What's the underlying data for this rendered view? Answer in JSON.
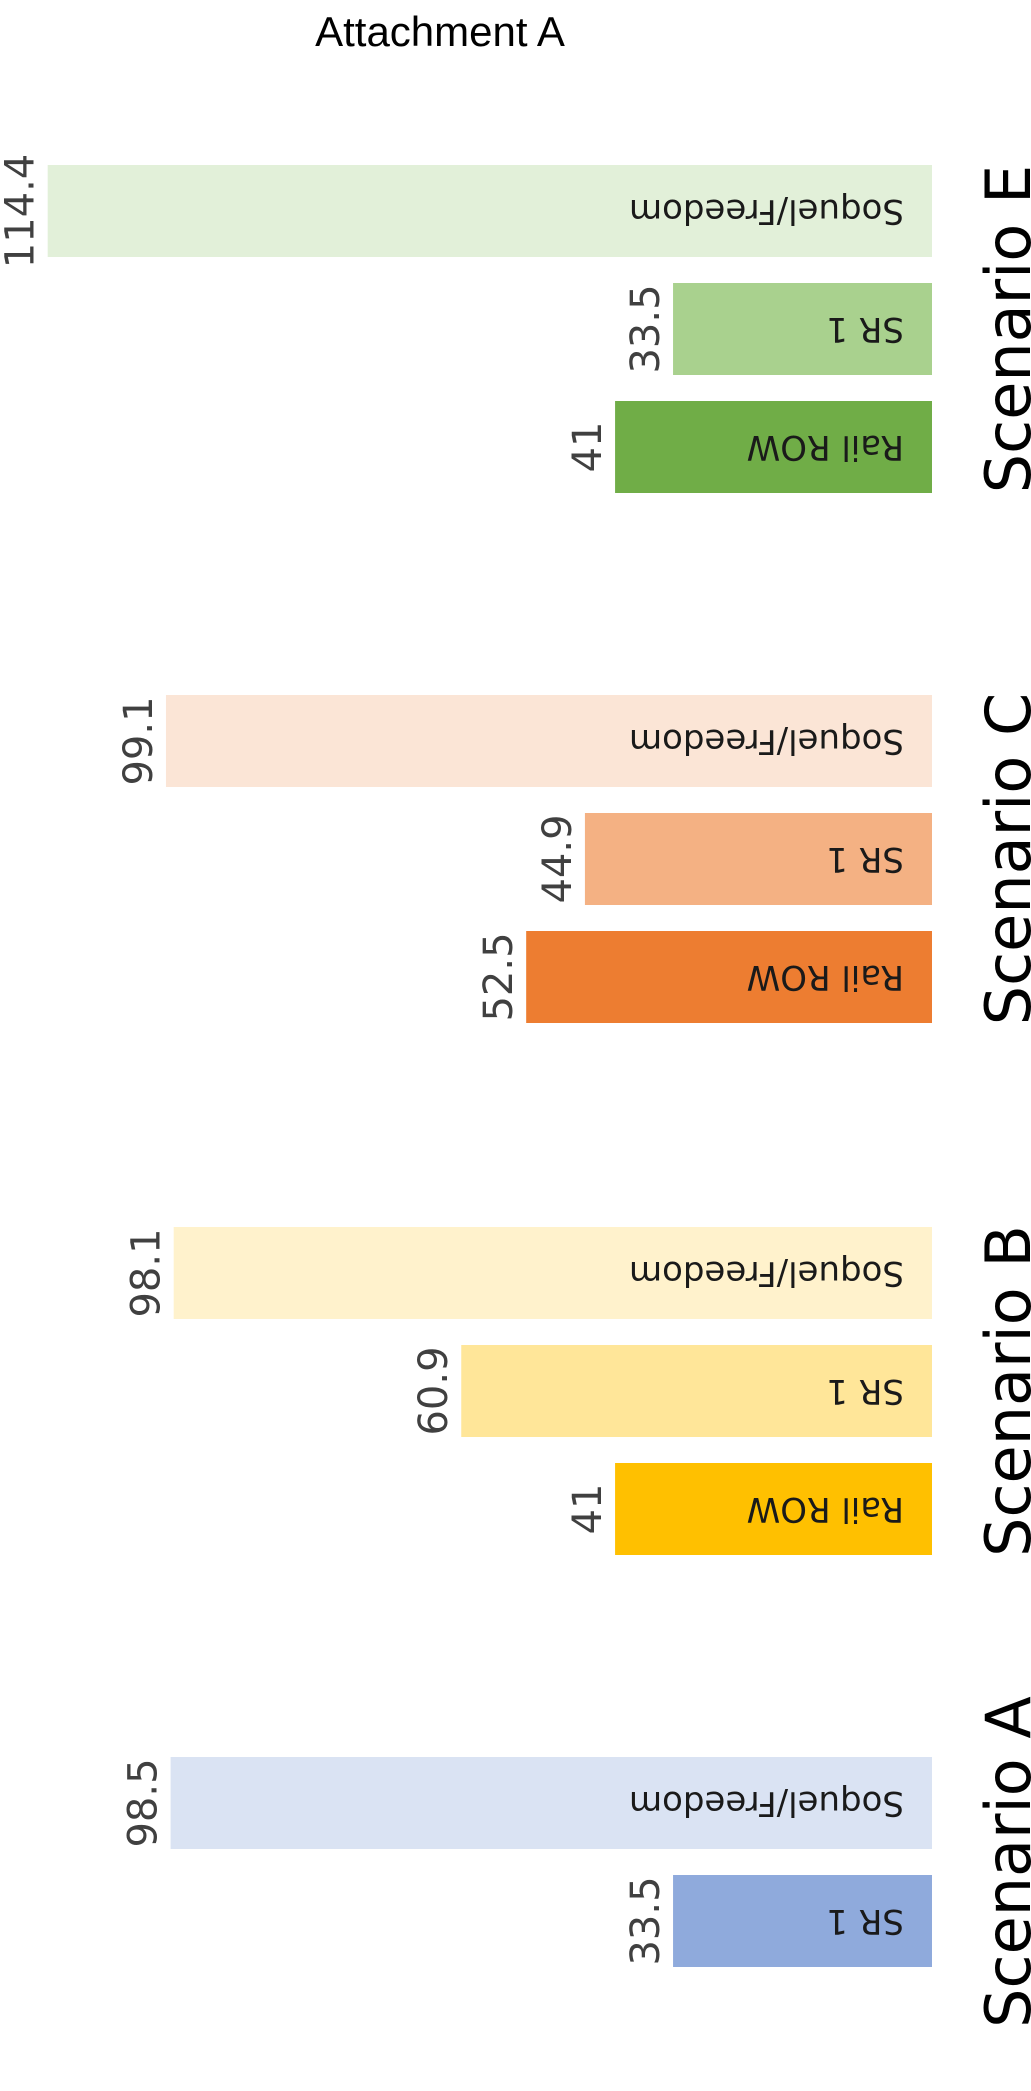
{
  "title": "Attachment A",
  "chart_data": {
    "type": "bar",
    "orientation": "horizontal",
    "groups": [
      {
        "name": "Scenario A",
        "bars": [
          {
            "label": "SR 1",
            "value": 33.5,
            "color": "#8FAADC"
          },
          {
            "label": "Soquel/Freedom",
            "value": 98.5,
            "color": "#DAE3F3"
          }
        ]
      },
      {
        "name": "Scenario B",
        "bars": [
          {
            "label": "Rail ROW",
            "value": 41,
            "color": "#FFC000"
          },
          {
            "label": "SR 1",
            "value": 60.9,
            "color": "#FFE699"
          },
          {
            "label": "Soquel/Freedom",
            "value": 98.1,
            "color": "#FFF2CC"
          }
        ]
      },
      {
        "name": "Scenario C",
        "bars": [
          {
            "label": "Rail ROW",
            "value": 52.5,
            "color": "#ED7D31"
          },
          {
            "label": "SR 1",
            "value": 44.9,
            "color": "#F4B183"
          },
          {
            "label": "Soquel/Freedom",
            "value": 99.1,
            "color": "#FBE5D6"
          }
        ]
      },
      {
        "name": "Scenario E",
        "bars": [
          {
            "label": "Rail ROW",
            "value": 41,
            "color": "#70AD47"
          },
          {
            "label": "SR 1",
            "value": 33.5,
            "color": "#A9D18E"
          },
          {
            "label": "Soquel/Freedom",
            "value": 114.4,
            "color": "#E2F0D9"
          }
        ]
      }
    ],
    "xlim": [
      0,
      120
    ],
    "grid": false,
    "legend": "none"
  }
}
